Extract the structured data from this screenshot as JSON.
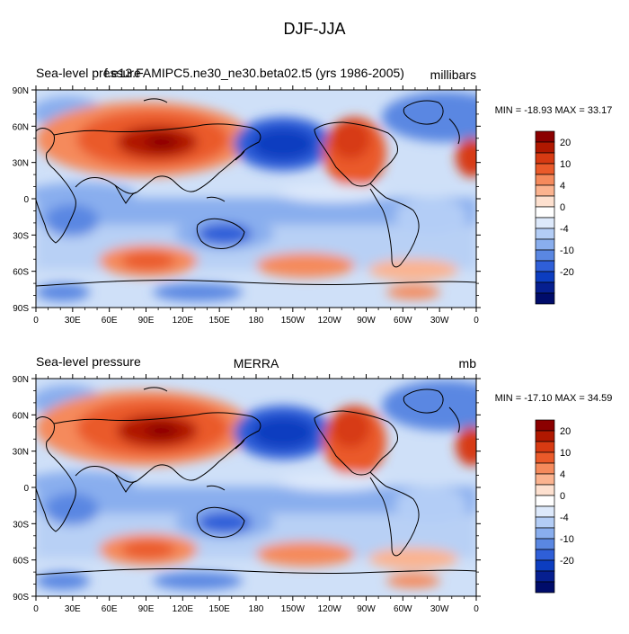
{
  "main_title": "DJF-JJA",
  "panels": [
    {
      "id": "model",
      "left_label": "Sea-level pressure",
      "center_label": "f.e13.FAMIPC5.ne30_ne30.beta02.t5 (yrs 1986-2005)",
      "right_label": "millibars",
      "stats": "MIN = -18.93 MAX =  33.17",
      "min": -18.93,
      "max": 33.17
    },
    {
      "id": "merra",
      "left_label": "Sea-level pressure",
      "center_label": "MERRA",
      "right_label": "mb",
      "stats": "MIN = -17.10 MAX =  34.59",
      "min": -17.1,
      "max": 34.59
    }
  ],
  "lat_ticks": [
    "90N",
    "60N",
    "30N",
    "0",
    "30S",
    "60S",
    "90S"
  ],
  "lon_ticks": [
    "0",
    "30E",
    "60E",
    "90E",
    "120E",
    "150E",
    "180",
    "150W",
    "120W",
    "90W",
    "60W",
    "30W",
    "0"
  ],
  "colorbar": {
    "colors": [
      "#8b0000",
      "#b01800",
      "#d73a12",
      "#ea5a2a",
      "#f58a5c",
      "#fbb38f",
      "#fde0cf",
      "#ffffff",
      "#dde9fb",
      "#b3cdf6",
      "#89aeee",
      "#5a87e2",
      "#2f5fd8",
      "#0c3dc0",
      "#061f90",
      "#000c6a"
    ],
    "labels": [
      "20",
      "10",
      "4",
      "0",
      "-4",
      "-10",
      "-20"
    ]
  },
  "colors": {
    "coast": "#000000",
    "frame": "#000000",
    "ocean_base": "#cfe0f8"
  }
}
